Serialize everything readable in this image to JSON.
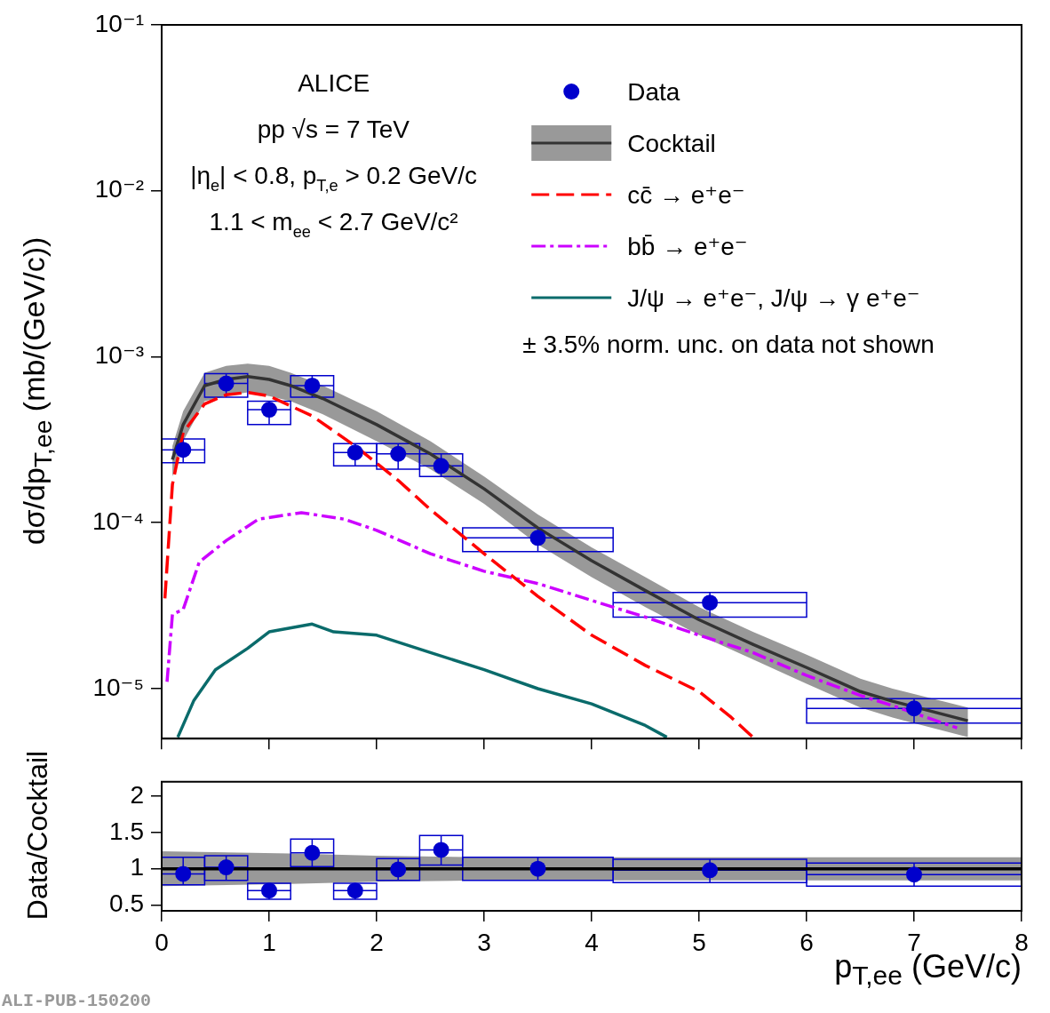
{
  "chart_data": [
    {
      "type": "line",
      "log": true,
      "legend": "top right",
      "tick_labels": "y",
      "xlim": [
        0,
        8
      ],
      "xticks": [
        0,
        1,
        2,
        3,
        4,
        5,
        6,
        7,
        8
      ],
      "ylim": [
        5e-06,
        0.1
      ],
      "yticks": [
        {
          "value": 1e-05,
          "label": "10⁻⁵"
        },
        {
          "value": 0.0001,
          "label": "10⁻⁴"
        },
        {
          "value": 0.001,
          "label": "10⁻³"
        },
        {
          "value": 0.01,
          "label": "10⁻²"
        },
        {
          "value": 0.1,
          "label": "10⁻¹"
        }
      ],
      "ylabel": "dσ/dp$_{T,ee}$ (mb/(GeV/c))",
      "annotations": [
        "ALICE",
        "pp √s = 7 TeV",
        "|η$_{e}$| < 0.8, p$_{T,e}$ > 0.2 GeV/c",
        "1.1 < m$_{ee}$ < 2.7 GeV/c²",
        "± 3.5% norm. unc. on data not shown"
      ],
      "series": [
        {
          "type": "scatter",
          "name": "Data",
          "color": "#0000cc",
          "marker": "circle",
          "x": [
            0.2,
            0.6,
            1.0,
            1.4,
            1.8,
            2.2,
            2.6,
            3.5,
            5.1,
            7.0
          ],
          "values": [
            0.000275,
            0.00069,
            0.00048,
            0.00067,
            0.000265,
            0.00026,
            0.00022,
            8.1e-05,
            3.3e-05,
            7.6e-06
          ],
          "errors": [
            [
              0.00023,
              0.00032
            ],
            [
              0.00057,
              0.00079
            ],
            [
              0.00039,
              0.00054
            ],
            [
              0.00057,
              0.00077
            ],
            [
              0.00022,
              0.0003
            ],
            [
              0.00021,
              0.0003
            ],
            [
              0.00019,
              0.00026
            ],
            [
              6.7e-05,
              9.3e-05
            ],
            [
              2.7e-05,
              3.8e-05
            ],
            [
              6.2e-06,
              8.7e-06
            ]
          ],
          "xerrors": [
            0.2,
            0.2,
            0.2,
            0.2,
            0.2,
            0.2,
            0.2,
            0.7,
            0.9,
            1.0
          ]
        },
        {
          "type": "line",
          "name": "Cocktail",
          "color": "#333333",
          "marker": "none",
          "line_style": "solid",
          "x": [
            0.1,
            0.2,
            0.4,
            0.6,
            0.8,
            1.0,
            1.2,
            1.5,
            2.0,
            2.5,
            3.0,
            3.5,
            4.0,
            4.5,
            5.0,
            5.5,
            6.0,
            6.5,
            6.8,
            7.5
          ],
          "values": [
            0.00024,
            0.00039,
            0.00067,
            0.00073,
            0.00076,
            0.00073,
            0.00067,
            0.00056,
            0.00039,
            0.00026,
            0.00016,
            9.3e-05,
            5.9e-05,
            3.9e-05,
            2.6e-05,
            1.85e-05,
            1.34e-05,
            9.6e-06,
            8.4e-06,
            6.4e-06
          ],
          "lower": [
            0.00019,
            0.00031,
            0.00054,
            0.00058,
            0.00061,
            0.00058,
            0.00054,
            0.00045,
            0.00031,
            0.00021,
            0.00013,
            7.4e-05,
            4.7e-05,
            3.1e-05,
            2.1e-05,
            1.5e-05,
            1.07e-05,
            7.7e-06,
            6.7e-06,
            5.1e-06
          ],
          "upper": [
            0.00029,
            0.00047,
            0.0008,
            0.00088,
            0.00091,
            0.00088,
            0.0008,
            0.00067,
            0.00047,
            0.00031,
            0.00019,
            0.000112,
            7.1e-05,
            4.7e-05,
            3.1e-05,
            2.2e-05,
            1.6e-05,
            1.15e-05,
            1e-05,
            7.7e-06
          ]
        },
        {
          "type": "line",
          "name": "cc̄ → e⁺e⁻",
          "color": "#ff0000",
          "marker": "none",
          "line_style": "dashed",
          "x": [
            0.03,
            0.1,
            0.2,
            0.4,
            0.6,
            0.8,
            1.0,
            1.4,
            1.8,
            2.2,
            2.5,
            3.0,
            3.5,
            4.0,
            4.5,
            5.0,
            5.3,
            5.5
          ],
          "values": [
            3.5e-05,
            0.00017,
            0.00035,
            0.00052,
            0.00059,
            0.00061,
            0.00058,
            0.00044,
            0.00029,
            0.00018,
            0.00012,
            6.5e-05,
            3.6e-05,
            2.1e-05,
            1.38e-05,
            9.6e-06,
            6.7e-06,
            5.1e-06
          ]
        },
        {
          "type": "line",
          "name": "bb̄ → e⁺e⁻",
          "color": "#cc00ff",
          "marker": "none",
          "line_style": "dashdot",
          "x": [
            0.05,
            0.1,
            0.2,
            0.35,
            0.6,
            0.9,
            1.3,
            1.7,
            2.0,
            2.5,
            3.0,
            3.5,
            4.0,
            4.5,
            5.0,
            5.5,
            6.0,
            6.5,
            6.8,
            7.4
          ],
          "values": [
            1.1e-05,
            2.8e-05,
            3e-05,
            5.8e-05,
            7.8e-05,
            0.000105,
            0.000115,
            0.000105,
            9e-05,
            6.5e-05,
            5.1e-05,
            4.3e-05,
            3.4e-05,
            2.7e-05,
            2.1e-05,
            1.65e-05,
            1.2e-05,
            9.1e-06,
            7.9e-06,
            5.8e-06
          ]
        },
        {
          "type": "line",
          "name": "J/ψ → e⁺e⁻, J/ψ → γ e⁺e⁻",
          "color": "#0a6b6b",
          "marker": "none",
          "line_style": "solid",
          "x": [
            0.15,
            0.3,
            0.5,
            0.8,
            1.0,
            1.4,
            1.6,
            2.0,
            2.5,
            3.0,
            3.5,
            4.0,
            4.5,
            4.7
          ],
          "values": [
            5.1e-06,
            8.5e-06,
            1.3e-05,
            1.75e-05,
            2.2e-05,
            2.45e-05,
            2.2e-05,
            2.1e-05,
            1.65e-05,
            1.3e-05,
            1e-05,
            8.1e-06,
            6e-06,
            5.1e-06
          ]
        }
      ]
    },
    {
      "type": "line",
      "xlim": [
        0,
        8
      ],
      "xticks": [
        0,
        1,
        2,
        3,
        4,
        5,
        6,
        7,
        8
      ],
      "ylim": [
        0.42,
        2.2
      ],
      "yticks": [
        0.5,
        1,
        1.5,
        2
      ],
      "xlabel": "p$_{T,ee}$ (GeV/c)",
      "ylabel": "Data/Cocktail",
      "annotations": [
        "ALI-PUB-150200"
      ],
      "series": [
        {
          "type": "scatter",
          "color": "#0000cc",
          "marker": "circle",
          "x": [
            0.2,
            0.6,
            1.0,
            1.4,
            1.8,
            2.2,
            2.6,
            3.5,
            5.1,
            7.0
          ],
          "values": [
            0.93,
            1.02,
            0.7,
            1.22,
            0.7,
            0.99,
            1.26,
            1.0,
            0.98,
            0.92
          ],
          "errors": [
            [
              0.78,
              1.16
            ],
            [
              0.84,
              1.18
            ],
            [
              0.58,
              0.8
            ],
            [
              1.03,
              1.41
            ],
            [
              0.58,
              0.8
            ],
            [
              0.84,
              1.14
            ],
            [
              1.05,
              1.46
            ],
            [
              0.84,
              1.16
            ],
            [
              0.81,
              1.13
            ],
            [
              0.76,
              1.08
            ]
          ],
          "xerrors": [
            0.2,
            0.2,
            0.2,
            0.2,
            0.2,
            0.2,
            0.2,
            0.7,
            0.9,
            1.0
          ]
        },
        {
          "type": "line",
          "color": "#000000",
          "marker": "none",
          "line_style": "solid",
          "x": [
            0,
            1.2,
            2,
            3,
            4,
            5,
            6,
            7.5,
            8
          ],
          "values": [
            1,
            1,
            1,
            1,
            1,
            1,
            1,
            1,
            1
          ],
          "lower": [
            0.76,
            0.79,
            0.82,
            0.84,
            0.84,
            0.84,
            0.84,
            0.84,
            0.84
          ],
          "upper": [
            1.24,
            1.21,
            1.18,
            1.16,
            1.16,
            1.16,
            1.16,
            1.16,
            1.16
          ]
        }
      ]
    }
  ]
}
